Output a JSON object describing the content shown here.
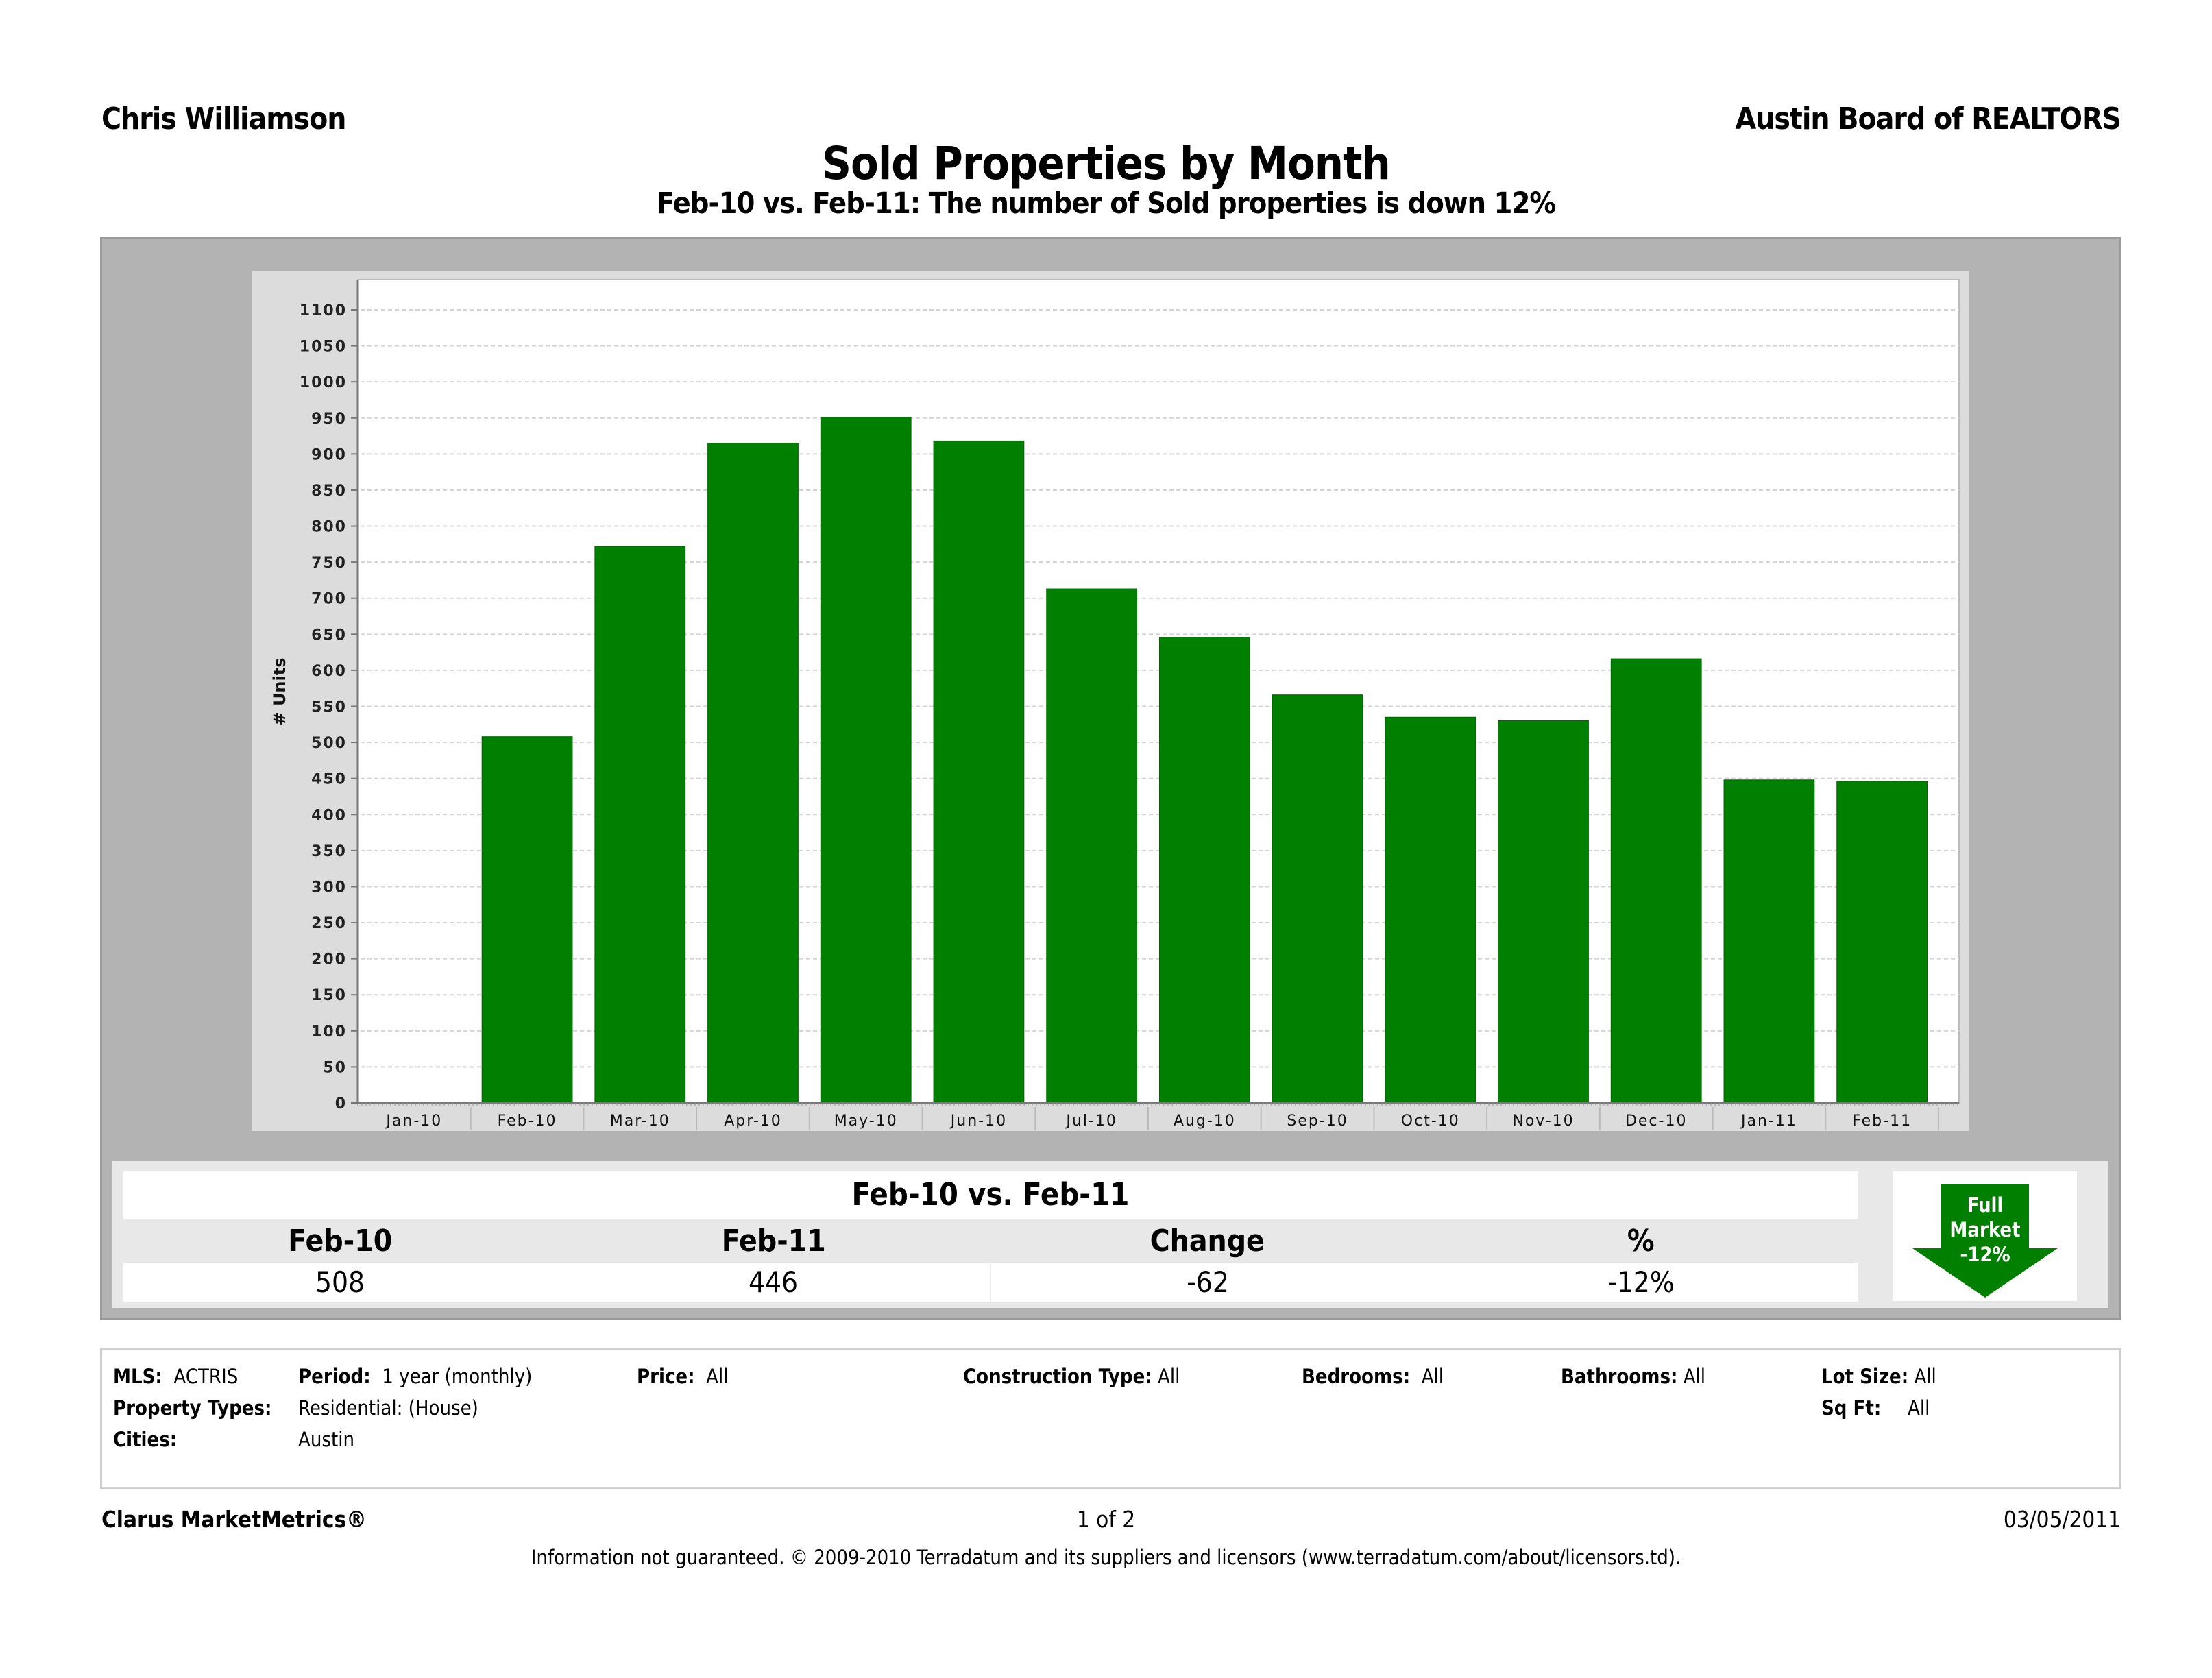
{
  "header": {
    "agent_name": "Chris Williamson",
    "board_name": "Austin Board of REALTORS",
    "title": "Sold Properties by Month",
    "subtitle": "Feb-10 vs. Feb-11: The number of Sold properties is down 12%"
  },
  "chart_data": {
    "type": "bar",
    "title": "Sold Properties by Month",
    "xlabel": "",
    "ylabel": "# Units",
    "categories": [
      "Jan-10",
      "Feb-10",
      "Mar-10",
      "Apr-10",
      "May-10",
      "Jun-10",
      "Jul-10",
      "Aug-10",
      "Sep-10",
      "Oct-10",
      "Nov-10",
      "Dec-10",
      "Jan-11",
      "Feb-11"
    ],
    "values": [
      null,
      508,
      772,
      915,
      951,
      918,
      713,
      646,
      566,
      535,
      530,
      616,
      448,
      446
    ],
    "ylim": [
      0,
      1100
    ],
    "yticks": [
      0,
      50,
      100,
      150,
      200,
      250,
      300,
      350,
      400,
      450,
      500,
      550,
      600,
      650,
      700,
      750,
      800,
      850,
      900,
      950,
      1000,
      1050,
      1100
    ],
    "grid": true,
    "legend": "none",
    "bar_color": "#007f00"
  },
  "comparison": {
    "title": "Feb-10 vs. Feb-11",
    "headers": [
      "Feb-10",
      "Feb-11",
      "Change",
      "%"
    ],
    "values": [
      "508",
      "446",
      "-62",
      "-12%"
    ],
    "badge": {
      "line1": "Full",
      "line2": "Market",
      "line3": "-12%",
      "direction": "down",
      "color": "#007f00"
    }
  },
  "criteria": {
    "mls_label": "MLS:",
    "mls_value": "ACTRIS",
    "period_label": "Period:",
    "period_value": "1 year (monthly)",
    "price_label": "Price:",
    "price_value": "All",
    "construction_label": "Construction Type:",
    "construction_value": "All",
    "bedrooms_label": "Bedrooms:",
    "bedrooms_value": "All",
    "bathrooms_label": "Bathrooms:",
    "bathrooms_value": "All",
    "lotsize_label": "Lot Size:",
    "lotsize_value": "All",
    "sqft_label": "Sq Ft:",
    "sqft_value": "All",
    "property_types_label": "Property Types:",
    "property_types_value": "Residential: (House)",
    "cities_label": "Cities:",
    "cities_value": "Austin"
  },
  "footer": {
    "brand": "Clarus MarketMetrics®",
    "page": "1 of 2",
    "date": "03/05/2011",
    "disclaimer": "Information not guaranteed.  © 2009-2010 Terradatum and its suppliers and licensors (www.terradatum.com/about/licensors.td)."
  }
}
